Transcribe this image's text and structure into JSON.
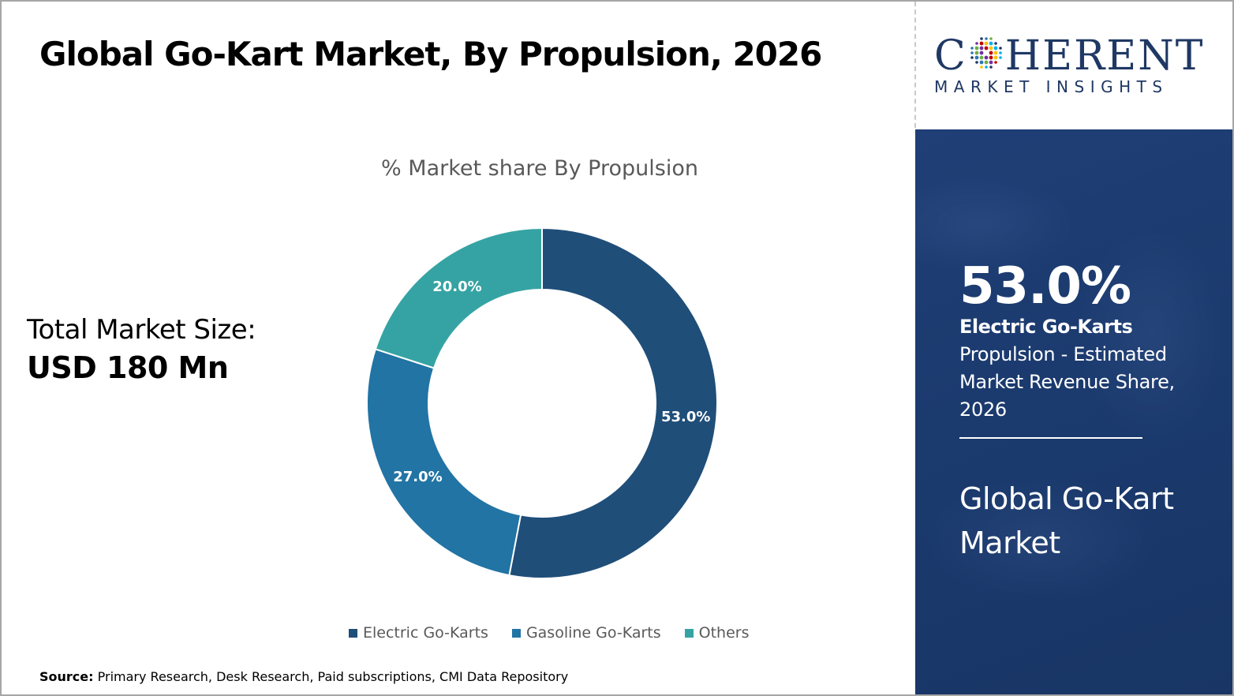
{
  "title": "Global Go-Kart Market, By Propulsion, 2026",
  "logo": {
    "line1": "COHERENT",
    "line2": "MARKET INSIGHTS"
  },
  "total_market": {
    "label": "Total Market Size:",
    "value": "USD 180 Mn"
  },
  "source": {
    "label": "Source:",
    "text": "Primary Research, Desk Research, Paid subscriptions, CMI Data Repository"
  },
  "side_panel": {
    "percent": "53.0%",
    "segment": "Electric Go-Karts",
    "description": "Propulsion - Estimated Market Revenue Share, 2026",
    "market_name": "Global Go-Kart Market"
  },
  "colors": {
    "electric": "#1f4e79",
    "gasoline": "#2174a4",
    "others": "#35a3a3",
    "panel": "#1b3a6e"
  },
  "chart_data": {
    "type": "pie",
    "donut": true,
    "title": "% Market share By Propulsion",
    "categories": [
      "Electric Go-Karts",
      "Gasoline Go-Karts",
      "Others"
    ],
    "values": [
      53.0,
      27.0,
      20.0
    ],
    "labels": [
      "53.0%",
      "27.0%",
      "20.0%"
    ],
    "legend_position": "bottom"
  }
}
